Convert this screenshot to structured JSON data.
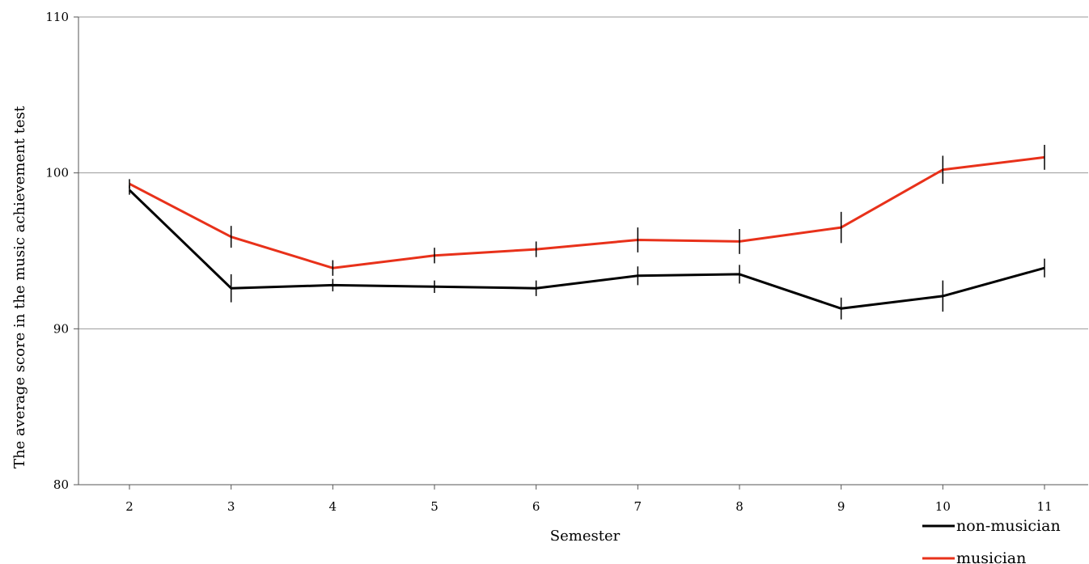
{
  "chart_data": {
    "type": "line",
    "title": "",
    "xlabel": "Semester",
    "ylabel": "The average score in the music achievement test",
    "x": [
      2,
      3,
      4,
      5,
      6,
      7,
      8,
      9,
      10,
      11
    ],
    "ylim": [
      80,
      110
    ],
    "yticks": [
      80,
      90,
      100,
      110
    ],
    "grid": true,
    "legend_position": "bottom-right",
    "series": [
      {
        "name": "non-musician",
        "color": "#000000",
        "values": [
          98.9,
          92.6,
          92.8,
          92.7,
          92.6,
          93.4,
          93.5,
          91.3,
          92.1,
          93.9
        ],
        "error": [
          0.3,
          0.9,
          0.4,
          0.4,
          0.5,
          0.6,
          0.6,
          0.7,
          1.0,
          0.6
        ]
      },
      {
        "name": "musician",
        "color": "#e8311a",
        "values": [
          99.3,
          95.9,
          93.9,
          94.7,
          95.1,
          95.7,
          95.6,
          96.5,
          100.2,
          101.0
        ],
        "error": [
          0.3,
          0.7,
          0.5,
          0.5,
          0.5,
          0.8,
          0.8,
          1.0,
          0.9,
          0.8
        ]
      }
    ]
  }
}
